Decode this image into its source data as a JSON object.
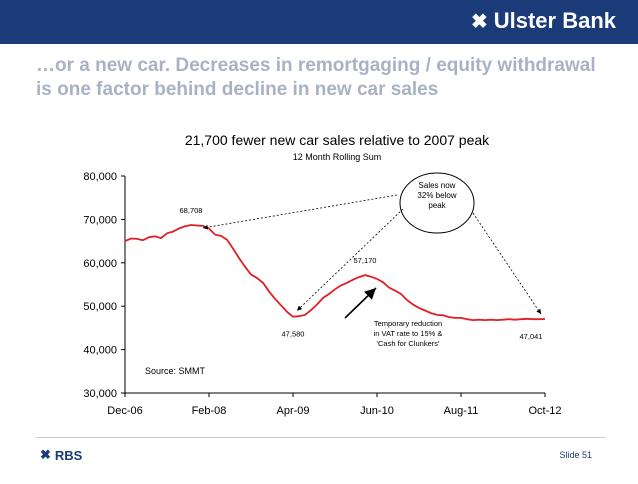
{
  "brand": {
    "logo_text": "Ulster Bank",
    "footer_logo_text": "RBS",
    "brand_color": "#1a3a78"
  },
  "slide": {
    "title": "…or a new car. Decreases in remortgaging / equity withdrawal is one factor behind decline in new car sales",
    "number_label": "Slide 51"
  },
  "chart_data": {
    "type": "line",
    "title": "21,700 fewer new car sales relative to 2007 peak",
    "subtitle": "12 Month Rolling Sum",
    "xlabel": "",
    "ylabel": "",
    "ylim": [
      30000,
      80000
    ],
    "yticks": [
      "80,000",
      "70,000",
      "60,000",
      "50,000",
      "40,000",
      "30,000"
    ],
    "xticks": [
      "Dec-06",
      "Feb-08",
      "Apr-09",
      "Jun-10",
      "Aug-11",
      "Oct-12"
    ],
    "x_start": "2006-12",
    "x_end": "2012-10",
    "grid": false,
    "line_color": "#e01f26",
    "series": [
      {
        "values": [
          {
            "x": "2006-12",
            "y": 65000
          },
          {
            "x": "2007-01",
            "y": 65600
          },
          {
            "x": "2007-02",
            "y": 65500
          },
          {
            "x": "2007-03",
            "y": 65200
          },
          {
            "x": "2007-04",
            "y": 65900
          },
          {
            "x": "2007-05",
            "y": 66100
          },
          {
            "x": "2007-06",
            "y": 65700
          },
          {
            "x": "2007-07",
            "y": 66800
          },
          {
            "x": "2007-08",
            "y": 67200
          },
          {
            "x": "2007-09",
            "y": 67900
          },
          {
            "x": "2007-10",
            "y": 68400
          },
          {
            "x": "2007-11",
            "y": 68708
          },
          {
            "x": "2007-12",
            "y": 68600
          },
          {
            "x": "2008-01",
            "y": 68500
          },
          {
            "x": "2008-02",
            "y": 67900
          },
          {
            "x": "2008-03",
            "y": 66500
          },
          {
            "x": "2008-04",
            "y": 66200
          },
          {
            "x": "2008-05",
            "y": 65300
          },
          {
            "x": "2008-06",
            "y": 63300
          },
          {
            "x": "2008-07",
            "y": 61100
          },
          {
            "x": "2008-08",
            "y": 59100
          },
          {
            "x": "2008-09",
            "y": 57300
          },
          {
            "x": "2008-10",
            "y": 56500
          },
          {
            "x": "2008-11",
            "y": 55400
          },
          {
            "x": "2008-12",
            "y": 53400
          },
          {
            "x": "2009-01",
            "y": 51700
          },
          {
            "x": "2009-02",
            "y": 50200
          },
          {
            "x": "2009-03",
            "y": 48700
          },
          {
            "x": "2009-04",
            "y": 47580
          },
          {
            "x": "2009-05",
            "y": 47700
          },
          {
            "x": "2009-06",
            "y": 48000
          },
          {
            "x": "2009-07",
            "y": 49100
          },
          {
            "x": "2009-08",
            "y": 50400
          },
          {
            "x": "2009-09",
            "y": 51900
          },
          {
            "x": "2009-10",
            "y": 52800
          },
          {
            "x": "2009-11",
            "y": 53900
          },
          {
            "x": "2009-12",
            "y": 54800
          },
          {
            "x": "2010-01",
            "y": 55400
          },
          {
            "x": "2010-02",
            "y": 56100
          },
          {
            "x": "2010-03",
            "y": 56700
          },
          {
            "x": "2010-04",
            "y": 57170
          },
          {
            "x": "2010-05",
            "y": 56800
          },
          {
            "x": "2010-06",
            "y": 56300
          },
          {
            "x": "2010-07",
            "y": 55500
          },
          {
            "x": "2010-08",
            "y": 54300
          },
          {
            "x": "2010-09",
            "y": 53600
          },
          {
            "x": "2010-10",
            "y": 52800
          },
          {
            "x": "2010-11",
            "y": 51400
          },
          {
            "x": "2010-12",
            "y": 50400
          },
          {
            "x": "2011-01",
            "y": 49600
          },
          {
            "x": "2011-02",
            "y": 49000
          },
          {
            "x": "2011-03",
            "y": 48400
          },
          {
            "x": "2011-04",
            "y": 48000
          },
          {
            "x": "2011-05",
            "y": 47900
          },
          {
            "x": "2011-06",
            "y": 47500
          },
          {
            "x": "2011-07",
            "y": 47300
          },
          {
            "x": "2011-08",
            "y": 47300
          },
          {
            "x": "2011-09",
            "y": 47000
          },
          {
            "x": "2011-10",
            "y": 46800
          },
          {
            "x": "2011-11",
            "y": 46900
          },
          {
            "x": "2011-12",
            "y": 46800
          },
          {
            "x": "2012-01",
            "y": 46900
          },
          {
            "x": "2012-02",
            "y": 46800
          },
          {
            "x": "2012-03",
            "y": 46900
          },
          {
            "x": "2012-04",
            "y": 47000
          },
          {
            "x": "2012-05",
            "y": 46900
          },
          {
            "x": "2012-06",
            "y": 47000
          },
          {
            "x": "2012-07",
            "y": 47100
          },
          {
            "x": "2012-08",
            "y": 47000
          },
          {
            "x": "2012-09",
            "y": 47000
          },
          {
            "x": "2012-10",
            "y": 47041
          }
        ]
      }
    ],
    "data_labels": [
      {
        "x": "2007-11",
        "y": 68708,
        "text": "68,708",
        "position": "above"
      },
      {
        "x": "2009-04",
        "y": 47580,
        "text": "47,580",
        "position": "below"
      },
      {
        "x": "2010-04",
        "y": 57170,
        "text": "57,170",
        "position": "above"
      },
      {
        "x": "2012-10",
        "y": 47041,
        "text": "47,041",
        "position": "below"
      }
    ],
    "callout": "Sales now 32% below peak",
    "annotation": "Temporary reduction in VAT rate to 15% & 'Cash for Clunkers'",
    "source": "Source: SMMT"
  }
}
